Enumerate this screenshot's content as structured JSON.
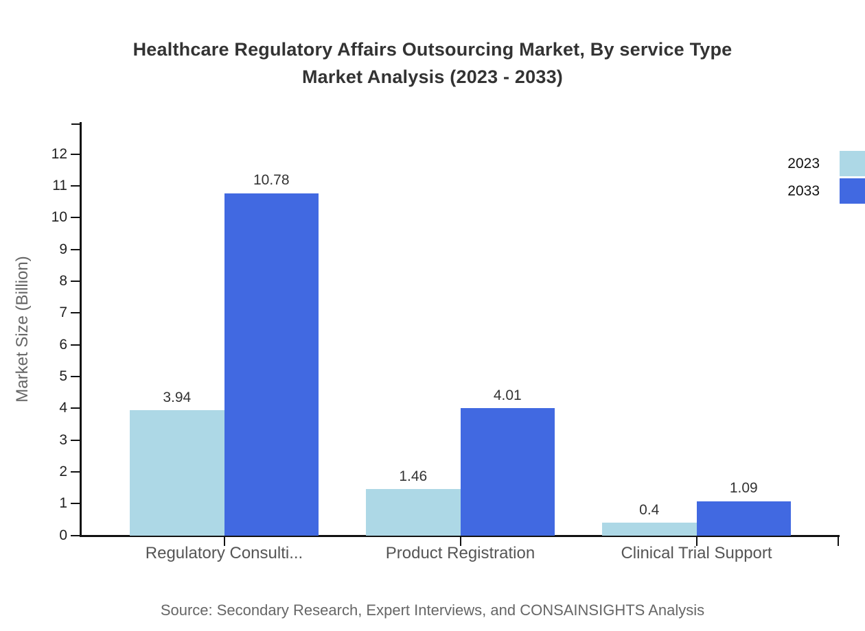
{
  "title": {
    "line1": "Healthcare Regulatory Affairs Outsourcing Market, By service Type",
    "line2": "Market Analysis (2023 - 2033)"
  },
  "source": "Source: Secondary Research, Expert Interviews, and CONSAINSIGHTS Analysis",
  "legend": {
    "position": "top-right",
    "items": [
      {
        "label": "2023",
        "color": "#ADD8E6"
      },
      {
        "label": "2033",
        "color": "#4169E1"
      }
    ]
  },
  "colors": {
    "series_2023": "#ADD8E6",
    "series_2033": "#4169E1",
    "axis": "#111111",
    "title_text": "#333333",
    "muted_text": "#666666",
    "category_text": "#555555"
  },
  "chart_data": {
    "type": "bar",
    "title": "Healthcare Regulatory Affairs Outsourcing Market, By service Type Market Analysis (2023 - 2033)",
    "categories": [
      "Regulatory Consulti...",
      "Product Registration",
      "Clinical Trial Support"
    ],
    "series": [
      {
        "name": "2023",
        "color": "#ADD8E6",
        "values": [
          3.94,
          1.46,
          0.4
        ],
        "labels": [
          "3.94",
          "1.46",
          "0.4"
        ]
      },
      {
        "name": "2033",
        "color": "#4169E1",
        "values": [
          10.78,
          4.01,
          1.09
        ],
        "labels": [
          "10.78",
          "4.01",
          "1.09"
        ]
      }
    ],
    "xlabel": "",
    "ylabel": "Market Size (Billion)",
    "ylim": [
      0,
      13
    ],
    "yticks": [
      0,
      1,
      2,
      3,
      4,
      5,
      6,
      7,
      8,
      9,
      10,
      11,
      12
    ],
    "grid": false,
    "legend_position": "top-right",
    "value_labels_shown": true
  }
}
